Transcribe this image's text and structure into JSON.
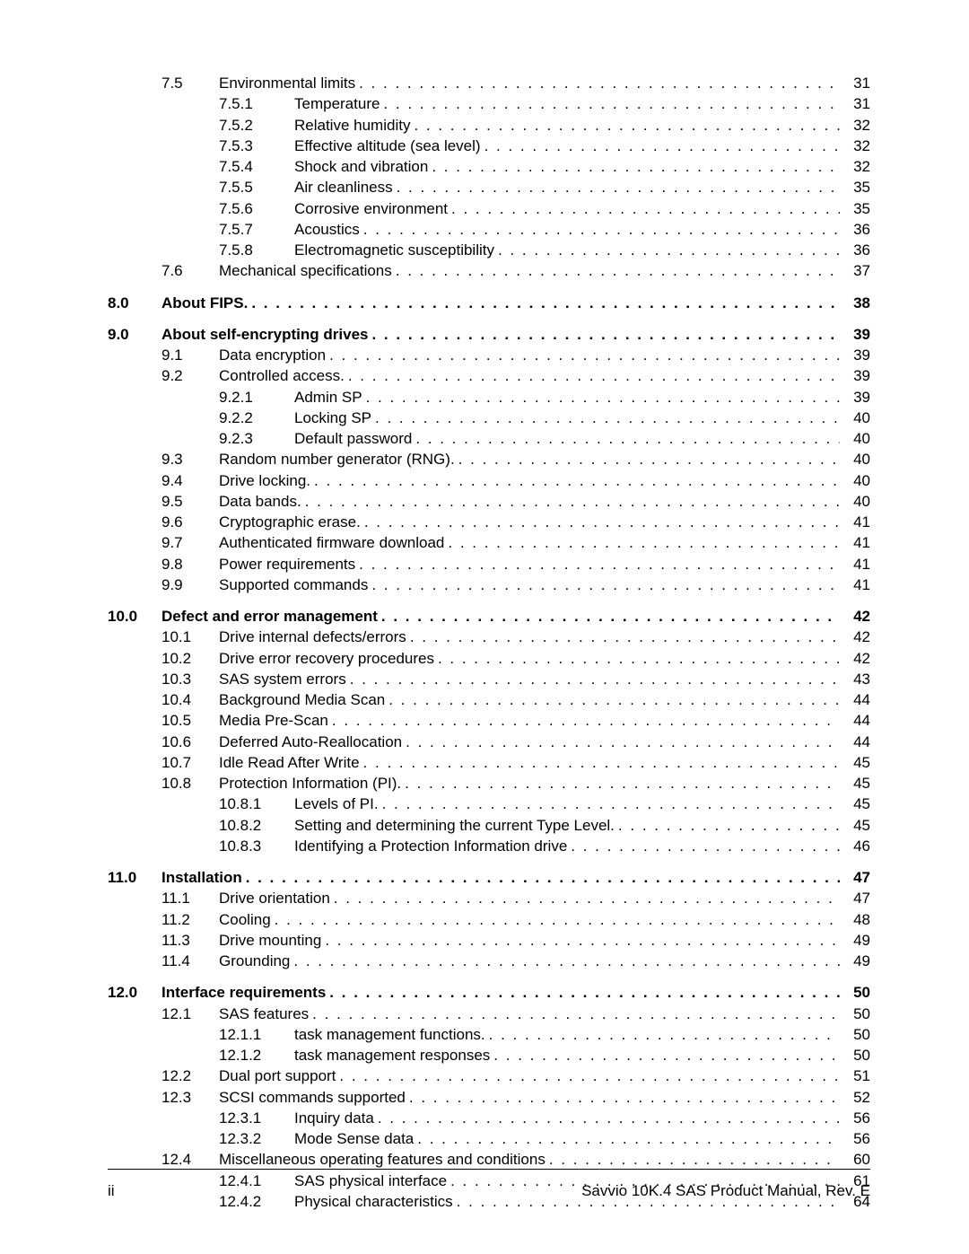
{
  "footer": {
    "page_label": "ii",
    "doc_title": "Savvio 10K.4 SAS Product Manual, Rev. E"
  },
  "entries": [
    {
      "level": "section",
      "chapter": "",
      "section": "7.5",
      "sub": "",
      "title": "Environmental limits",
      "page": "31",
      "bold": false
    },
    {
      "level": "subsection",
      "chapter": "",
      "section": "",
      "sub": "7.5.1",
      "title": "Temperature",
      "page": "31",
      "bold": false
    },
    {
      "level": "subsection",
      "chapter": "",
      "section": "",
      "sub": "7.5.2",
      "title": "Relative humidity",
      "page": "32",
      "bold": false
    },
    {
      "level": "subsection",
      "chapter": "",
      "section": "",
      "sub": "7.5.3",
      "title": "Effective altitude (sea level)",
      "page": "32",
      "bold": false
    },
    {
      "level": "subsection",
      "chapter": "",
      "section": "",
      "sub": "7.5.4",
      "title": "Shock and vibration",
      "page": "32",
      "bold": false
    },
    {
      "level": "subsection",
      "chapter": "",
      "section": "",
      "sub": "7.5.5",
      "title": "Air cleanliness",
      "page": "35",
      "bold": false
    },
    {
      "level": "subsection",
      "chapter": "",
      "section": "",
      "sub": "7.5.6",
      "title": "Corrosive environment",
      "page": "35",
      "bold": false
    },
    {
      "level": "subsection",
      "chapter": "",
      "section": "",
      "sub": "7.5.7",
      "title": "Acoustics",
      "page": "36",
      "bold": false
    },
    {
      "level": "subsection",
      "chapter": "",
      "section": "",
      "sub": "7.5.8",
      "title": "Electromagnetic susceptibility",
      "page": "36",
      "bold": false
    },
    {
      "level": "section",
      "chapter": "",
      "section": "7.6",
      "sub": "",
      "title": "Mechanical specifications",
      "page": "37",
      "bold": false
    },
    {
      "level": "gap"
    },
    {
      "level": "chapter",
      "chapter": "8.0",
      "section": "",
      "sub": "",
      "title": "About FIPS.",
      "page": "38",
      "bold": true
    },
    {
      "level": "gap"
    },
    {
      "level": "chapter",
      "chapter": "9.0",
      "section": "",
      "sub": "",
      "title": "About self-encrypting drives",
      "page": "39",
      "bold": true
    },
    {
      "level": "section",
      "chapter": "",
      "section": "9.1",
      "sub": "",
      "title": "Data encryption",
      "page": "39",
      "bold": false
    },
    {
      "level": "section",
      "chapter": "",
      "section": "9.2",
      "sub": "",
      "title": "Controlled access.",
      "page": "39",
      "bold": false
    },
    {
      "level": "subsection",
      "chapter": "",
      "section": "",
      "sub": "9.2.1",
      "title": "Admin SP",
      "page": "39",
      "bold": false
    },
    {
      "level": "subsection",
      "chapter": "",
      "section": "",
      "sub": "9.2.2",
      "title": "Locking SP",
      "page": "40",
      "bold": false
    },
    {
      "level": "subsection",
      "chapter": "",
      "section": "",
      "sub": "9.2.3",
      "title": "Default password",
      "page": "40",
      "bold": false
    },
    {
      "level": "section",
      "chapter": "",
      "section": "9.3",
      "sub": "",
      "title": "Random number generator (RNG).",
      "page": "40",
      "bold": false
    },
    {
      "level": "section",
      "chapter": "",
      "section": "9.4",
      "sub": "",
      "title": "Drive locking.",
      "page": "40",
      "bold": false
    },
    {
      "level": "section",
      "chapter": "",
      "section": "9.5",
      "sub": "",
      "title": "Data bands.",
      "page": "40",
      "bold": false
    },
    {
      "level": "section",
      "chapter": "",
      "section": "9.6",
      "sub": "",
      "title": "Cryptographic erase.",
      "page": "41",
      "bold": false
    },
    {
      "level": "section",
      "chapter": "",
      "section": "9.7",
      "sub": "",
      "title": "Authenticated firmware download",
      "page": "41",
      "bold": false
    },
    {
      "level": "section",
      "chapter": "",
      "section": "9.8",
      "sub": "",
      "title": "Power requirements",
      "page": "41",
      "bold": false
    },
    {
      "level": "section",
      "chapter": "",
      "section": "9.9",
      "sub": "",
      "title": "Supported commands",
      "page": "41",
      "bold": false
    },
    {
      "level": "gap"
    },
    {
      "level": "chapter",
      "chapter": "10.0",
      "section": "",
      "sub": "",
      "title": "Defect and error management",
      "page": "42",
      "bold": true
    },
    {
      "level": "section",
      "chapter": "",
      "section": "10.1",
      "sub": "",
      "title": "Drive internal defects/errors",
      "page": "42",
      "bold": false
    },
    {
      "level": "section",
      "chapter": "",
      "section": "10.2",
      "sub": "",
      "title": "Drive error recovery procedures",
      "page": "42",
      "bold": false
    },
    {
      "level": "section",
      "chapter": "",
      "section": "10.3",
      "sub": "",
      "title": "SAS system errors",
      "page": "43",
      "bold": false
    },
    {
      "level": "section",
      "chapter": "",
      "section": "10.4",
      "sub": "",
      "title": "Background Media Scan",
      "page": "44",
      "bold": false
    },
    {
      "level": "section",
      "chapter": "",
      "section": "10.5",
      "sub": "",
      "title": "Media Pre-Scan",
      "page": "44",
      "bold": false
    },
    {
      "level": "section",
      "chapter": "",
      "section": "10.6",
      "sub": "",
      "title": "Deferred Auto-Reallocation",
      "page": "44",
      "bold": false
    },
    {
      "level": "section",
      "chapter": "",
      "section": "10.7",
      "sub": "",
      "title": "Idle Read After Write",
      "page": "45",
      "bold": false
    },
    {
      "level": "section",
      "chapter": "",
      "section": "10.8",
      "sub": "",
      "title": "Protection Information (PI).",
      "page": "45",
      "bold": false
    },
    {
      "level": "subsection",
      "chapter": "",
      "section": "",
      "sub": "10.8.1",
      "title": "Levels of PI.",
      "page": "45",
      "bold": false
    },
    {
      "level": "subsection",
      "chapter": "",
      "section": "",
      "sub": "10.8.2",
      "title": "Setting and determining the current Type Level.",
      "page": "45",
      "bold": false
    },
    {
      "level": "subsection",
      "chapter": "",
      "section": "",
      "sub": "10.8.3",
      "title": "Identifying a Protection Information drive",
      "page": "46",
      "bold": false
    },
    {
      "level": "gap"
    },
    {
      "level": "chapter",
      "chapter": "11.0",
      "section": "",
      "sub": "",
      "title": "Installation",
      "page": "47",
      "bold": true
    },
    {
      "level": "section",
      "chapter": "",
      "section": "11.1",
      "sub": "",
      "title": "Drive orientation",
      "page": "47",
      "bold": false
    },
    {
      "level": "section",
      "chapter": "",
      "section": "11.2",
      "sub": "",
      "title": "Cooling",
      "page": "48",
      "bold": false
    },
    {
      "level": "section",
      "chapter": "",
      "section": "11.3",
      "sub": "",
      "title": "Drive mounting",
      "page": "49",
      "bold": false
    },
    {
      "level": "section",
      "chapter": "",
      "section": "11.4",
      "sub": "",
      "title": "Grounding",
      "page": "49",
      "bold": false
    },
    {
      "level": "gap"
    },
    {
      "level": "chapter",
      "chapter": "12.0",
      "section": "",
      "sub": "",
      "title": "Interface requirements",
      "page": "50",
      "bold": true
    },
    {
      "level": "section",
      "chapter": "",
      "section": "12.1",
      "sub": "",
      "title": "SAS features",
      "page": "50",
      "bold": false
    },
    {
      "level": "subsection",
      "chapter": "",
      "section": "",
      "sub": "12.1.1",
      "title": "task management functions.",
      "page": "50",
      "bold": false
    },
    {
      "level": "subsection",
      "chapter": "",
      "section": "",
      "sub": "12.1.2",
      "title": "task management responses",
      "page": "50",
      "bold": false
    },
    {
      "level": "section",
      "chapter": "",
      "section": "12.2",
      "sub": "",
      "title": "Dual port support",
      "page": "51",
      "bold": false
    },
    {
      "level": "section",
      "chapter": "",
      "section": "12.3",
      "sub": "",
      "title": "SCSI commands supported",
      "page": "52",
      "bold": false
    },
    {
      "level": "subsection",
      "chapter": "",
      "section": "",
      "sub": "12.3.1",
      "title": "Inquiry data",
      "page": "56",
      "bold": false
    },
    {
      "level": "subsection",
      "chapter": "",
      "section": "",
      "sub": "12.3.2",
      "title": "Mode Sense data",
      "page": "56",
      "bold": false
    },
    {
      "level": "section",
      "chapter": "",
      "section": "12.4",
      "sub": "",
      "title": "Miscellaneous operating features and conditions",
      "page": "60",
      "bold": false
    },
    {
      "level": "subsection",
      "chapter": "",
      "section": "",
      "sub": "12.4.1",
      "title": "SAS physical interface",
      "page": "61",
      "bold": false
    },
    {
      "level": "subsection",
      "chapter": "",
      "section": "",
      "sub": "12.4.2",
      "title": "Physical characteristics",
      "page": "64",
      "bold": false
    }
  ]
}
